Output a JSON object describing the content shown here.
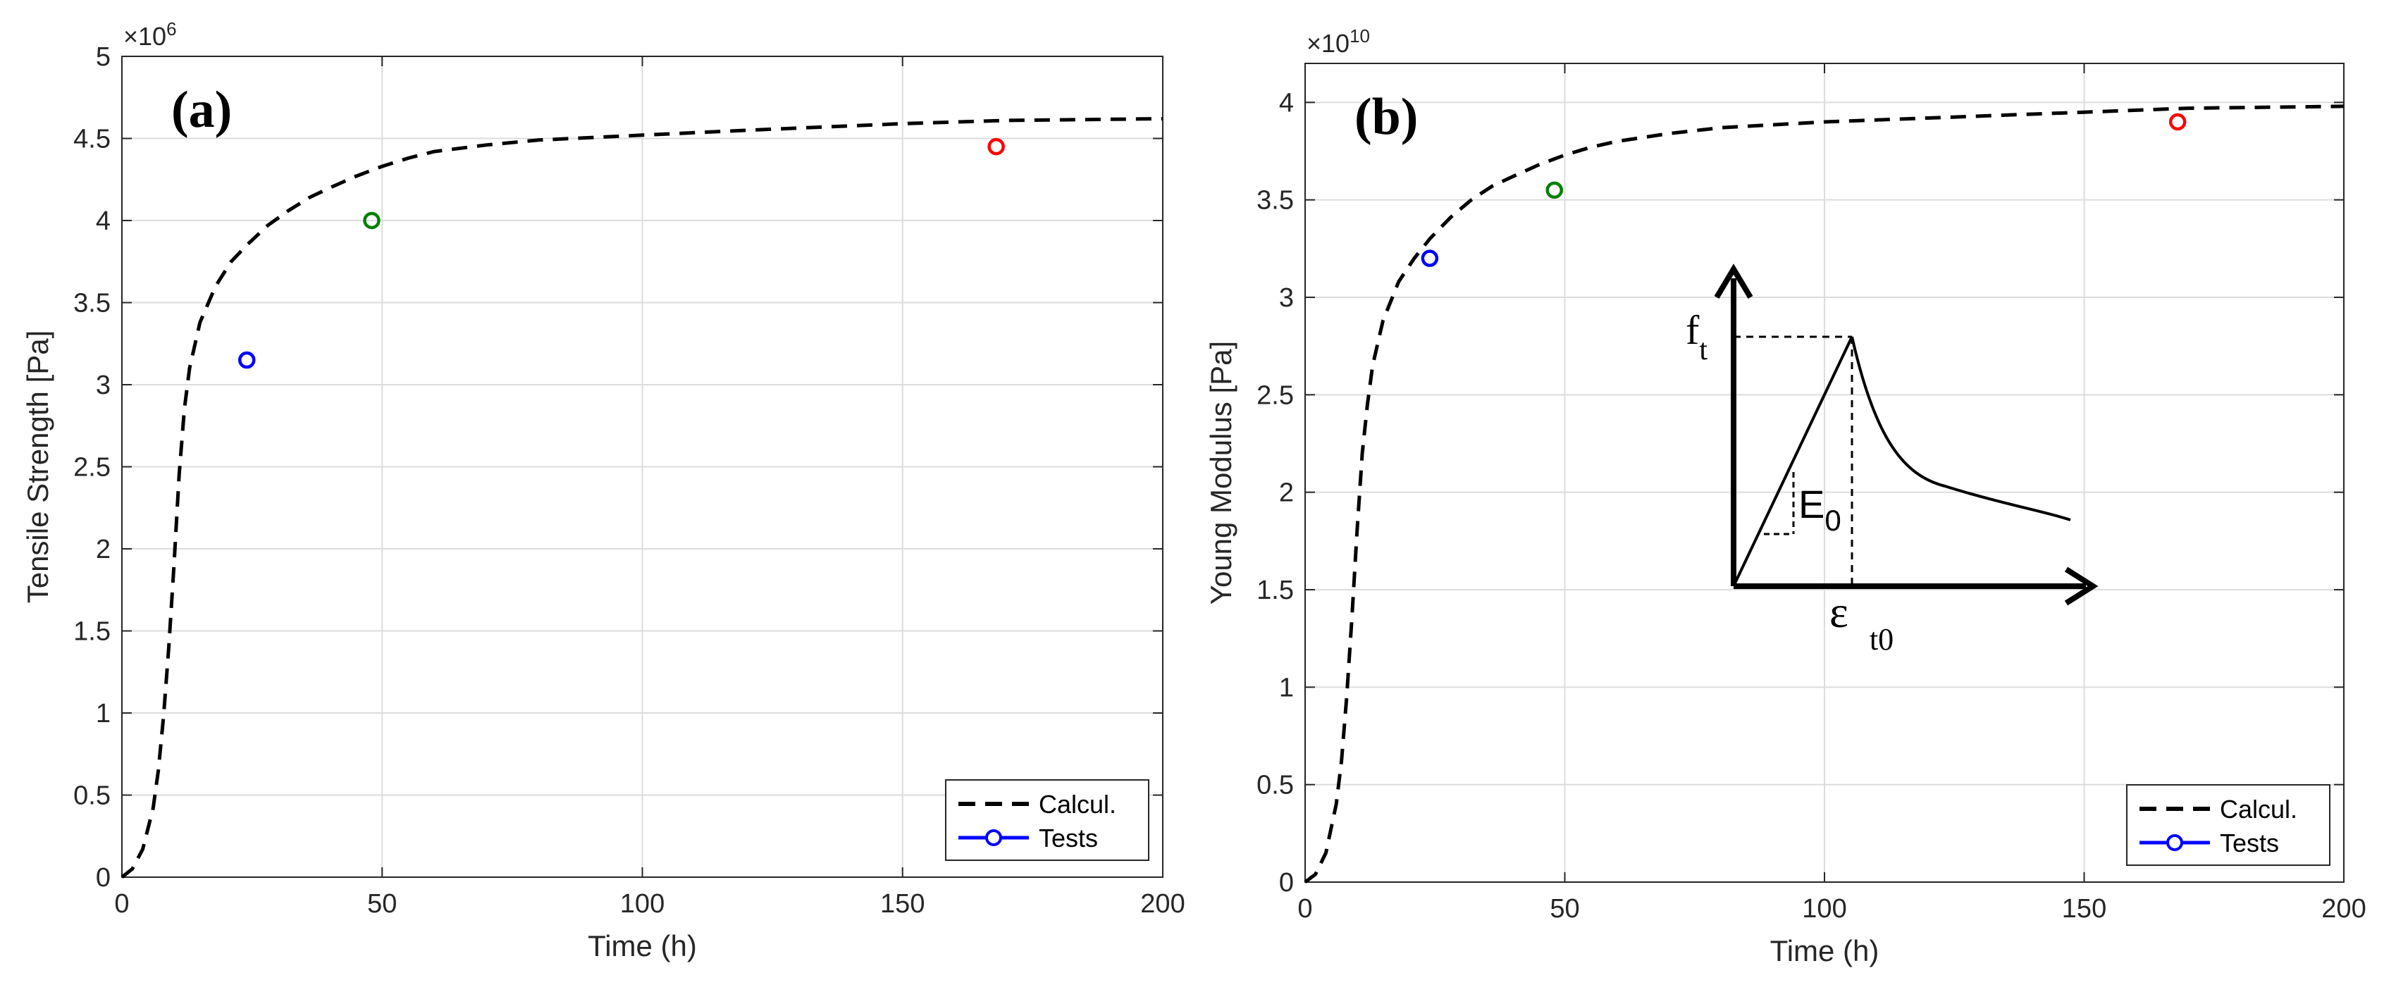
{
  "chart_data": [
    {
      "type": "line",
      "panel_label": "(a)",
      "title": "",
      "xlabel": "Time (h)",
      "ylabel": "Tensile Strength [Pa]",
      "exponent_label": "×10",
      "exponent_power": "6",
      "xlim": [
        0,
        200
      ],
      "ylim": [
        0,
        5
      ],
      "grid": true,
      "x_ticks": [
        "0",
        "50",
        "100",
        "150",
        "200"
      ],
      "y_ticks": [
        "0",
        "0.5",
        "1",
        "1.5",
        "2",
        "2.5",
        "3",
        "3.5",
        "4",
        "4.5",
        "5"
      ],
      "legend": {
        "placement": "bottom-right",
        "entries": [
          "Calcul.",
          "Tests"
        ]
      },
      "series": [
        {
          "name": "Calcul.",
          "style": "dashed",
          "color": "#000000",
          "x": [
            0,
            2,
            4,
            6,
            7,
            8,
            9,
            10,
            11,
            12,
            13,
            15,
            18,
            21,
            24,
            28,
            32,
            36,
            40,
            45,
            50,
            55,
            60,
            70,
            80,
            100,
            120,
            150,
            170,
            200
          ],
          "y": [
            0,
            0.05,
            0.17,
            0.42,
            0.65,
            0.98,
            1.4,
            1.9,
            2.45,
            2.85,
            3.1,
            3.38,
            3.6,
            3.75,
            3.85,
            3.97,
            4.06,
            4.14,
            4.2,
            4.27,
            4.33,
            4.38,
            4.42,
            4.46,
            4.49,
            4.52,
            4.55,
            4.59,
            4.61,
            4.62
          ]
        }
      ],
      "tests": {
        "name": "Tests",
        "points": [
          {
            "x": 24,
            "y": 3.15,
            "color": "#0000ff"
          },
          {
            "x": 48,
            "y": 4.0,
            "color": "#008000"
          },
          {
            "x": 168,
            "y": 4.45,
            "color": "#ff0000"
          }
        ]
      }
    },
    {
      "type": "line",
      "panel_label": "(b)",
      "title": "",
      "xlabel": "Time (h)",
      "ylabel": "Young Modulus [Pa]",
      "exponent_label": "×10",
      "exponent_power": "10",
      "xlim": [
        0,
        200
      ],
      "ylim": [
        0,
        4.2
      ],
      "grid": true,
      "x_ticks": [
        "0",
        "50",
        "100",
        "150",
        "200"
      ],
      "y_ticks": [
        "0",
        "0.5",
        "1",
        "1.5",
        "2",
        "2.5",
        "3",
        "3.5",
        "4"
      ],
      "legend": {
        "placement": "bottom-right",
        "entries": [
          "Calcul.",
          "Tests"
        ]
      },
      "series": [
        {
          "name": "Calcul.",
          "style": "dashed",
          "color": "#000000",
          "x": [
            0,
            2,
            4,
            6,
            7,
            8,
            9,
            10,
            11,
            12,
            13,
            15,
            18,
            21,
            24,
            28,
            32,
            36,
            40,
            45,
            50,
            55,
            60,
            70,
            80,
            100,
            120,
            150,
            170,
            200
          ],
          "y": [
            0,
            0.04,
            0.15,
            0.4,
            0.62,
            0.95,
            1.35,
            1.8,
            2.2,
            2.45,
            2.65,
            2.88,
            3.08,
            3.2,
            3.3,
            3.41,
            3.5,
            3.57,
            3.62,
            3.68,
            3.73,
            3.77,
            3.8,
            3.84,
            3.87,
            3.9,
            3.92,
            3.95,
            3.97,
            3.98
          ]
        }
      ],
      "tests": {
        "name": "Tests",
        "points": [
          {
            "x": 24,
            "y": 3.2,
            "color": "#0000ff"
          },
          {
            "x": 48,
            "y": 3.55,
            "color": "#008000"
          },
          {
            "x": 168,
            "y": 3.9,
            "color": "#ff0000"
          }
        ]
      },
      "inset": {
        "labels": {
          "ft_main": "f",
          "ft_sub": "t",
          "e0_main": "E",
          "e0_sub": "0",
          "eps_main": "ε",
          "eps_sub": "t0"
        }
      }
    }
  ]
}
